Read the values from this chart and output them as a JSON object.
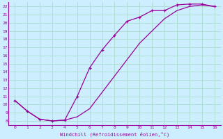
{
  "xlabel": "Windchill (Refroidissement éolien,°C)",
  "bg_color": "#cceeff",
  "line_color": "#990099",
  "grid_color": "#aaddcc",
  "xlim": [
    -0.5,
    16.5
  ],
  "ylim": [
    7.5,
    22.5
  ],
  "xticks": [
    0,
    1,
    2,
    3,
    4,
    5,
    6,
    7,
    8,
    9,
    10,
    11,
    12,
    13,
    14,
    15,
    16
  ],
  "yticks": [
    8,
    9,
    10,
    11,
    12,
    13,
    14,
    15,
    16,
    17,
    18,
    19,
    20,
    21,
    22
  ],
  "curve1_x": [
    0,
    1,
    2,
    3,
    4,
    5,
    6,
    7,
    8,
    9,
    10,
    11,
    12,
    13,
    14,
    15,
    16
  ],
  "curve1_y": [
    10.5,
    9.2,
    8.2,
    8.0,
    8.1,
    11.0,
    14.5,
    16.7,
    18.5,
    20.2,
    20.7,
    21.5,
    21.5,
    22.2,
    22.3,
    22.3,
    22.0
  ],
  "curve2_x": [
    0,
    1,
    2,
    3,
    4,
    5,
    6,
    7,
    8,
    9,
    10,
    11,
    12,
    13,
    14,
    15,
    16
  ],
  "curve2_y": [
    10.5,
    9.2,
    8.2,
    8.0,
    8.1,
    8.5,
    9.5,
    11.5,
    13.5,
    15.5,
    17.5,
    19.0,
    20.5,
    21.5,
    22.0,
    22.2,
    22.0
  ],
  "marker": "+"
}
